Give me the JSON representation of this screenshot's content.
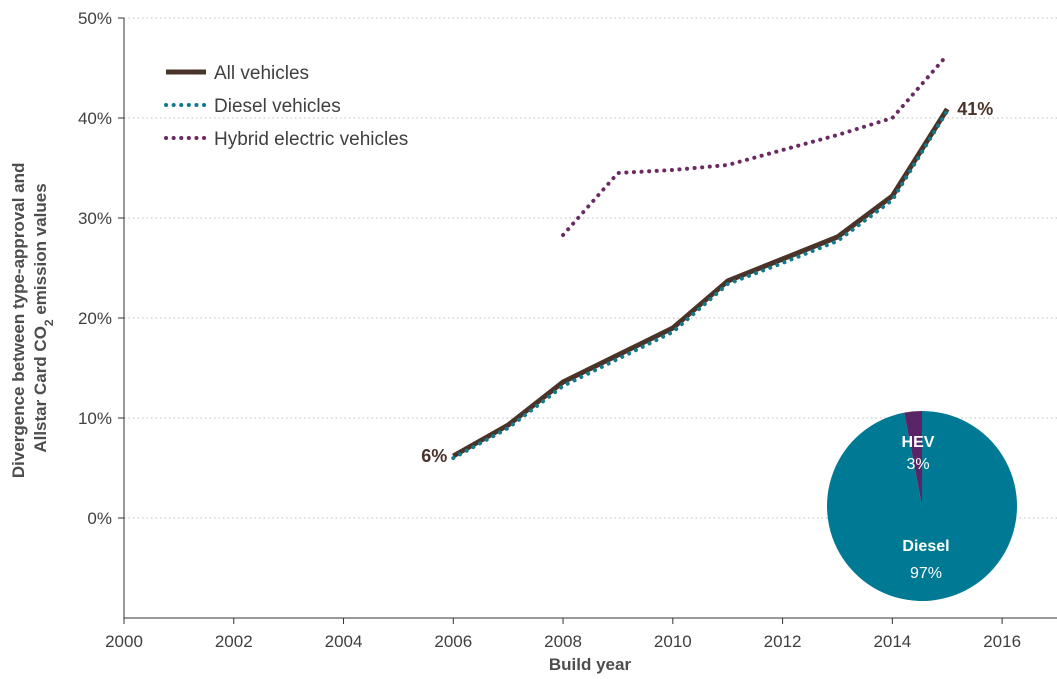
{
  "chart_data": {
    "type": "line",
    "xlabel": "Build year",
    "ylabel_line1": "Divergence between type-approval and",
    "ylabel_line2_prefix": "Allstar Card CO",
    "ylabel_sub": "2",
    "ylabel_line2_suffix": " emission values",
    "xlim": [
      2000,
      2017
    ],
    "ylim": [
      -10,
      50
    ],
    "x_ticks": [
      2000,
      2002,
      2004,
      2006,
      2008,
      2010,
      2012,
      2014,
      2016
    ],
    "x_tick_labels": [
      "2000",
      "2002",
      "2004",
      "2006",
      "2008",
      "2010",
      "2012",
      "2014",
      "2016"
    ],
    "y_ticks": [
      0,
      10,
      20,
      30,
      40,
      50
    ],
    "y_tick_labels": [
      "0%",
      "10%",
      "20%",
      "30%",
      "40%",
      "50%"
    ],
    "grid": "horizontal-dotted",
    "legend_position": "top-left",
    "series": [
      {
        "name": "All vehicles",
        "color": "#4a3328",
        "style": "solid",
        "x": [
          2006,
          2007,
          2008,
          2009,
          2010,
          2011,
          2012,
          2013,
          2014,
          2015
        ],
        "values": [
          6.2,
          9.3,
          13.6,
          16.3,
          19.0,
          23.7,
          25.9,
          28.1,
          32.2,
          40.9
        ]
      },
      {
        "name": "Diesel vehicles",
        "color": "#117a8b",
        "style": "dotted",
        "x": [
          2006,
          2007,
          2008,
          2009,
          2010,
          2011,
          2012,
          2013,
          2014,
          2015
        ],
        "values": [
          6.0,
          9.0,
          13.2,
          15.9,
          18.6,
          23.4,
          25.5,
          27.7,
          31.8,
          40.7
        ]
      },
      {
        "name": "Hybrid electric vehicles",
        "color": "#6b2a63",
        "style": "dotted",
        "x": [
          2008,
          2009,
          2010,
          2011,
          2012,
          2013,
          2014,
          2015
        ],
        "values": [
          28.3,
          34.5,
          34.8,
          35.3,
          36.8,
          38.3,
          40.0,
          46.3
        ]
      }
    ],
    "annotations": [
      {
        "text": "6%",
        "x": 2006,
        "y": 6.2,
        "anchor": "end"
      },
      {
        "text": "41%",
        "x": 2015,
        "y": 40.9,
        "anchor": "start"
      }
    ],
    "inset_pie": {
      "slices": [
        {
          "label": "Diesel",
          "pct_label": "97%",
          "value": 97,
          "color": "#007a94"
        },
        {
          "label": "HEV",
          "pct_label": "3%",
          "value": 3,
          "color": "#5a2566"
        }
      ]
    }
  }
}
